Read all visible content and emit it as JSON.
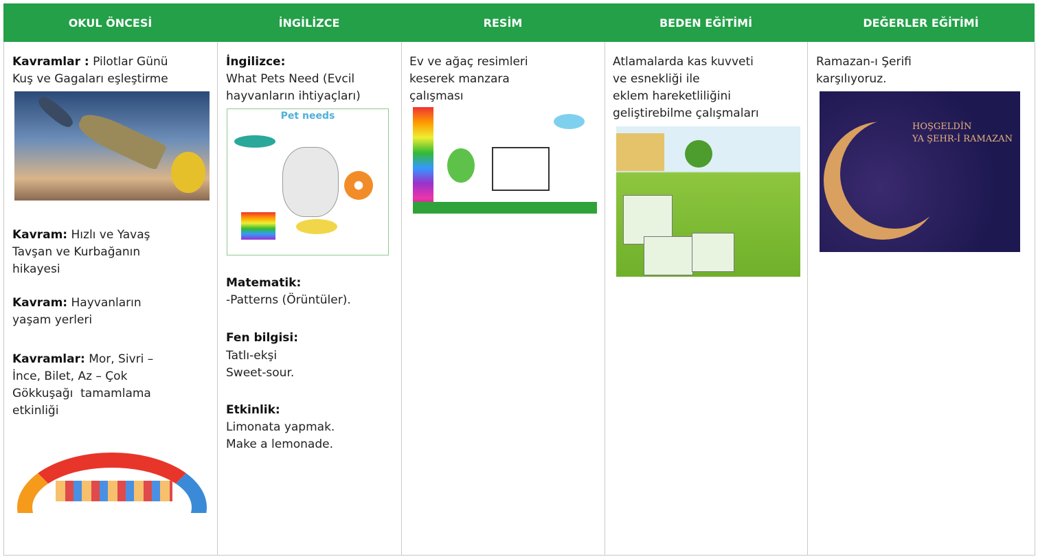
{
  "table": {
    "headers": [
      "OKUL ÖNCESİ",
      "İNGİLİZCE",
      "RESİM",
      "BEDEN EĞİTİMİ",
      "DEĞERLER EĞİTİMİ"
    ],
    "okul_oncesi": [
      {
        "label": "Kavramlar :",
        "lines": [
          "Pilotlar Günü",
          "Kuş ve Gagaları eşleştirme"
        ]
      },
      {
        "label": "Kavram:",
        "lines": [
          "Hızlı ve Yavaş",
          "Tavşan ve Kurbağanın",
          "hikayesi"
        ]
      },
      {
        "label": "Kavram:",
        "lines": [
          "Hayvanların",
          "yaşam yerleri"
        ]
      },
      {
        "label": "Kavramlar:",
        "lines": [
          "Mor, Sivri –",
          "İnce, Bilet, Az – Çok",
          "Gökkuşağı  tamamlama",
          "etkinliği"
        ]
      }
    ],
    "ingilizce": [
      {
        "label": "İngilizce:",
        "lines": [
          "What Pets Need (Evcil",
          "hayvanların ihtiyaçları)"
        ]
      },
      {
        "label": "Matematik:",
        "lines": [
          "-Patterns (Örüntüler)."
        ]
      },
      {
        "label": "Fen bilgisi:",
        "lines": [
          "Tatlı-ekşi",
          "Sweet-sour."
        ]
      },
      {
        "label": "Etkinlik:",
        "lines": [
          "Limonata yapmak.",
          "Make a lemonade."
        ]
      }
    ],
    "resim": [
      "Ev ve ağaç resimleri",
      "keserek manzara",
      "çalışması"
    ],
    "beden_egitimi": [
      "Atlamalarda kas kuvveti",
      "ve esnekliği ile",
      "eklem hareketliliğini",
      "geliştirebilme çalışmaları"
    ],
    "degerler_egitimi": [
      "Ramazan-ı Şerifi",
      "karşılıyoruz."
    ],
    "pet_needs_title": "Pet needs",
    "ramazan_image_text": [
      "HOŞGELDİN",
      "YA ŞEHR-İ RAMAZAN"
    ]
  }
}
